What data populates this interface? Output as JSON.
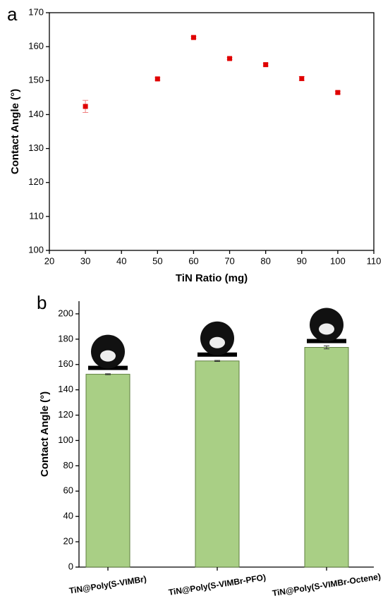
{
  "chart_data": [
    {
      "type": "scatter",
      "label": "a",
      "xlabel": "TiN Ratio (mg)",
      "ylabel": "Contact Angle (°)",
      "x": [
        30,
        50,
        60,
        70,
        80,
        90,
        100
      ],
      "values": [
        142.4,
        150.5,
        162.7,
        156.5,
        154.7,
        150.6,
        146.5
      ],
      "errors": [
        1.8,
        0.4,
        0.3,
        0.3,
        0.4,
        0.6,
        0.4
      ],
      "color": "#e00000",
      "error_color": "#f08080",
      "xlim": [
        20,
        110
      ],
      "xticks": [
        20,
        30,
        40,
        50,
        60,
        70,
        80,
        90,
        100,
        110
      ],
      "ylim": [
        100,
        170
      ],
      "yticks": [
        100,
        110,
        120,
        130,
        140,
        150,
        160,
        170
      ]
    },
    {
      "type": "bar",
      "label": "b",
      "ylabel": "Contact Angle (°)",
      "categories": [
        "TiN@Poly(S-VIMBr)",
        "TiN@Poly(S-VIMBr-PFO)",
        "TiN@Poly(S-VIMBr-Octene)"
      ],
      "values": [
        152.3,
        162.8,
        173.5
      ],
      "errors": [
        0.4,
        0.4,
        1.2
      ],
      "color": "#a9cf85",
      "edge_color": "#5f7f3f",
      "ylim": [
        0,
        210
      ],
      "yticks": [
        0,
        20,
        40,
        60,
        80,
        100,
        120,
        140,
        160,
        180,
        200
      ]
    }
  ]
}
